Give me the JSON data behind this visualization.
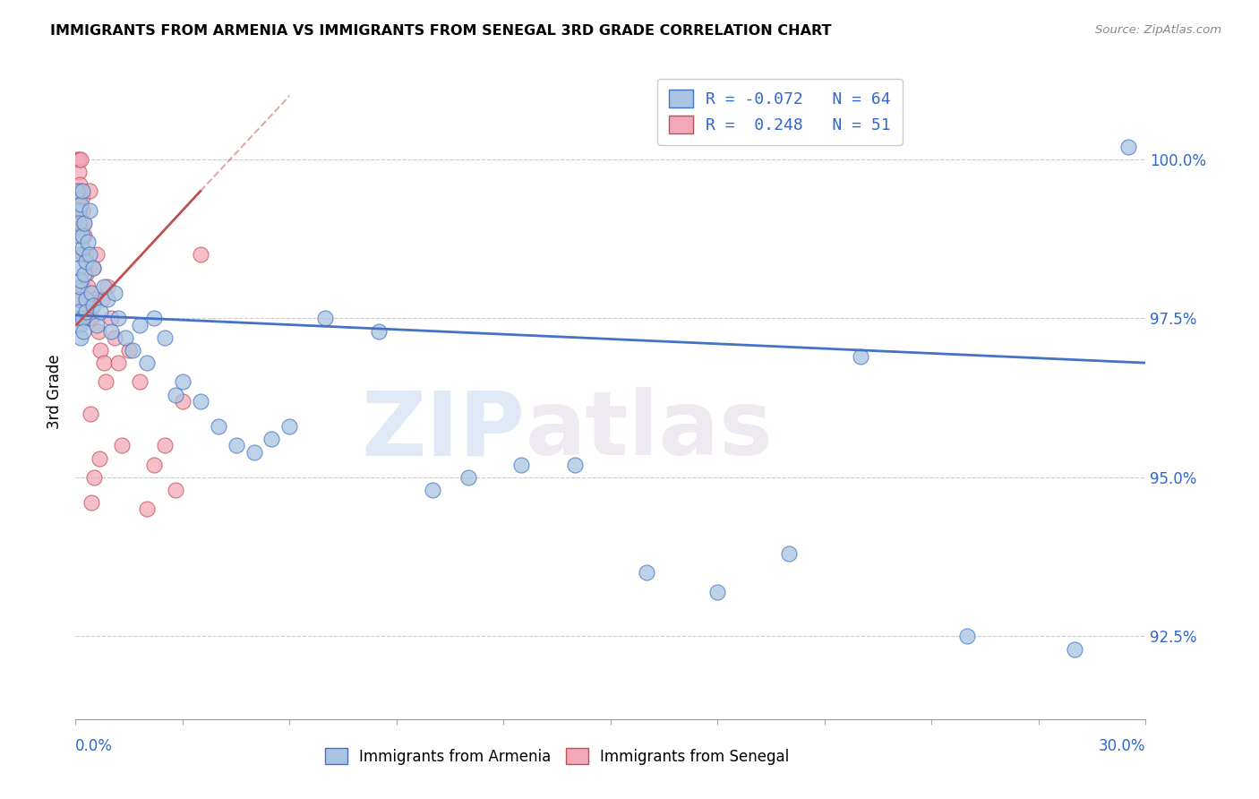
{
  "title": "IMMIGRANTS FROM ARMENIA VS IMMIGRANTS FROM SENEGAL 3RD GRADE CORRELATION CHART",
  "source": "Source: ZipAtlas.com",
  "ylabel": "3rd Grade",
  "yticks": [
    92.5,
    95.0,
    97.5,
    100.0
  ],
  "ytick_labels": [
    "92.5%",
    "95.0%",
    "97.5%",
    "100.0%"
  ],
  "xmin": 0.0,
  "xmax": 30.0,
  "ymin": 91.2,
  "ymax": 101.5,
  "legend_r_armenia": "-0.072",
  "legend_n_armenia": "64",
  "legend_r_senegal": "0.248",
  "legend_n_senegal": "51",
  "color_armenia": "#a8c4e0",
  "color_senegal": "#f2a8b8",
  "color_line_armenia": "#4472c4",
  "color_line_senegal": "#c0504d",
  "watermark_zip": "ZIP",
  "watermark_atlas": "atlas",
  "armenia_x": [
    0.05,
    0.05,
    0.05,
    0.08,
    0.08,
    0.08,
    0.1,
    0.1,
    0.1,
    0.12,
    0.12,
    0.15,
    0.15,
    0.15,
    0.18,
    0.18,
    0.2,
    0.2,
    0.22,
    0.25,
    0.25,
    0.28,
    0.3,
    0.3,
    0.35,
    0.4,
    0.4,
    0.45,
    0.5,
    0.5,
    0.6,
    0.7,
    0.8,
    0.9,
    1.0,
    1.1,
    1.2,
    1.4,
    1.6,
    1.8,
    2.0,
    2.2,
    2.5,
    3.0,
    3.5,
    4.0,
    5.0,
    5.5,
    6.0,
    7.0,
    8.5,
    10.0,
    11.0,
    12.5,
    14.0,
    16.0,
    18.0,
    20.0,
    22.0,
    25.0,
    28.0,
    29.5,
    2.8,
    4.5
  ],
  "armenia_y": [
    97.5,
    98.8,
    99.5,
    97.8,
    98.5,
    99.2,
    97.6,
    98.3,
    99.0,
    97.4,
    98.0,
    97.2,
    98.1,
    99.3,
    97.5,
    98.6,
    98.8,
    99.5,
    97.3,
    98.2,
    99.0,
    97.8,
    97.6,
    98.4,
    98.7,
    98.5,
    99.2,
    97.9,
    98.3,
    97.7,
    97.4,
    97.6,
    98.0,
    97.8,
    97.3,
    97.9,
    97.5,
    97.2,
    97.0,
    97.4,
    96.8,
    97.5,
    97.2,
    96.5,
    96.2,
    95.8,
    95.4,
    95.6,
    95.8,
    97.5,
    97.3,
    94.8,
    95.0,
    95.2,
    95.2,
    93.5,
    93.2,
    93.8,
    96.9,
    92.5,
    92.3,
    100.2,
    96.3,
    95.5
  ],
  "senegal_x": [
    0.03,
    0.05,
    0.05,
    0.07,
    0.08,
    0.08,
    0.1,
    0.1,
    0.12,
    0.12,
    0.15,
    0.15,
    0.18,
    0.18,
    0.2,
    0.2,
    0.22,
    0.25,
    0.25,
    0.28,
    0.3,
    0.32,
    0.35,
    0.38,
    0.4,
    0.45,
    0.5,
    0.55,
    0.6,
    0.65,
    0.7,
    0.75,
    0.8,
    0.85,
    0.9,
    1.0,
    1.1,
    1.2,
    1.3,
    1.5,
    1.8,
    2.0,
    2.2,
    2.5,
    2.8,
    3.0,
    3.5,
    0.42,
    0.52,
    0.68,
    0.45
  ],
  "senegal_y": [
    97.8,
    99.5,
    100.0,
    99.3,
    99.2,
    100.0,
    99.0,
    99.8,
    98.8,
    99.6,
    99.5,
    100.0,
    99.4,
    98.5,
    99.2,
    98.0,
    99.0,
    98.8,
    97.5,
    98.5,
    98.2,
    97.8,
    98.0,
    97.5,
    99.5,
    97.5,
    98.3,
    97.8,
    98.5,
    97.3,
    97.0,
    97.8,
    96.8,
    96.5,
    98.0,
    97.5,
    97.2,
    96.8,
    95.5,
    97.0,
    96.5,
    94.5,
    95.2,
    95.5,
    94.8,
    96.2,
    98.5,
    96.0,
    95.0,
    95.3,
    94.6
  ],
  "line_arm_x0": 0.0,
  "line_arm_x1": 30.0,
  "line_arm_y0": 97.55,
  "line_arm_y1": 96.8,
  "line_sen_x0": 0.03,
  "line_sen_x1": 3.5,
  "line_sen_y0": 97.4,
  "line_sen_y1": 99.5,
  "line_sen_dash_x0": 3.5,
  "line_sen_dash_x1": 6.0,
  "line_sen_dash_y0": 99.5,
  "line_sen_dash_y1": 101.0
}
